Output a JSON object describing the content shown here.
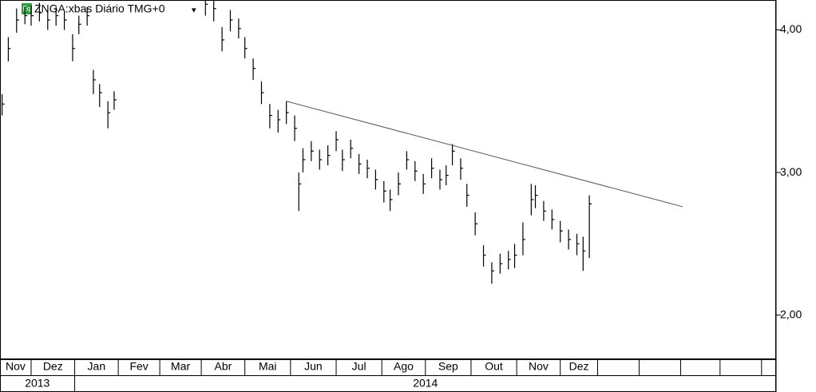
{
  "chart_data": {
    "type": "ohlc",
    "title": "ZNGA:xbas Diário TMG+0",
    "icon": "Eq",
    "menu": "▾",
    "x": [
      1,
      4,
      8,
      12,
      15,
      19,
      23,
      27,
      31,
      35,
      38,
      42,
      45,
      48,
      52,
      55,
      99,
      103,
      107,
      111,
      115,
      118,
      122,
      126,
      130,
      134,
      138,
      142,
      144,
      146,
      150,
      154,
      158,
      162,
      165,
      169,
      173,
      177,
      181,
      185,
      188,
      192,
      196,
      200,
      204,
      208,
      212,
      215,
      218,
      222,
      225,
      229,
      233,
      237,
      241,
      245,
      248,
      252,
      256,
      258,
      262,
      266,
      270,
      274,
      278,
      281,
      284
    ],
    "high": [
      3.55,
      3.95,
      4.15,
      4.16,
      4.17,
      4.19,
      4.14,
      4.16,
      4.13,
      3.97,
      4.1,
      4.16,
      3.72,
      3.62,
      3.5,
      3.57,
      4.21,
      4.21,
      4.02,
      4.14,
      4.08,
      3.95,
      3.8,
      3.64,
      3.48,
      3.44,
      3.5,
      3.4,
      3.0,
      3.17,
      3.22,
      3.16,
      3.19,
      3.29,
      3.16,
      3.23,
      3.13,
      3.09,
      3.02,
      2.94,
      2.88,
      3.0,
      3.15,
      3.08,
      2.99,
      3.1,
      3.02,
      3.05,
      3.2,
      3.1,
      2.92,
      2.72,
      2.49,
      2.37,
      2.43,
      2.45,
      2.5,
      2.65,
      2.92,
      2.91,
      2.8,
      2.74,
      2.66,
      2.6,
      2.57,
      2.55,
      2.84
    ],
    "low": [
      3.4,
      3.78,
      3.98,
      4.04,
      4.03,
      4.06,
      4.0,
      4.03,
      4.0,
      3.78,
      3.97,
      4.03,
      3.55,
      3.46,
      3.31,
      3.44,
      4.1,
      4.06,
      3.85,
      3.99,
      3.94,
      3.8,
      3.65,
      3.48,
      3.31,
      3.28,
      3.34,
      3.22,
      2.73,
      3.0,
      3.08,
      3.02,
      3.05,
      3.15,
      3.01,
      3.1,
      2.99,
      2.96,
      2.88,
      2.79,
      2.73,
      2.84,
      3.02,
      2.94,
      2.85,
      2.96,
      2.88,
      2.91,
      3.05,
      2.95,
      2.76,
      2.56,
      2.34,
      2.22,
      2.29,
      2.32,
      2.33,
      2.42,
      2.7,
      2.75,
      2.66,
      2.6,
      2.51,
      2.46,
      2.42,
      2.31,
      2.4
    ],
    "close": [
      3.48,
      3.87,
      4.07,
      4.1,
      4.1,
      4.12,
      4.07,
      4.1,
      4.07,
      3.87,
      4.04,
      4.1,
      3.65,
      3.56,
      3.42,
      3.51,
      4.18,
      4.15,
      3.93,
      4.07,
      4.01,
      3.87,
      3.73,
      3.56,
      3.4,
      3.37,
      3.42,
      3.31,
      2.92,
      3.09,
      3.15,
      3.09,
      3.12,
      3.23,
      3.09,
      3.17,
      3.06,
      3.03,
      2.95,
      2.87,
      2.81,
      2.92,
      3.09,
      3.01,
      2.92,
      3.03,
      2.95,
      2.98,
      3.15,
      3.03,
      2.84,
      2.64,
      2.42,
      2.31,
      2.36,
      2.39,
      2.42,
      2.53,
      2.81,
      2.84,
      2.73,
      2.67,
      2.59,
      2.53,
      2.5,
      2.45,
      2.78
    ],
    "color": "#000000",
    "trendline": {
      "x": [
        138,
        329
      ],
      "y": [
        3.5,
        2.76
      ],
      "color": "#555555"
    },
    "xlim": [
      0,
      374
    ],
    "ylim": [
      1.69,
      4.21
    ],
    "yticks": [
      {
        "value": 2,
        "label": "2,00"
      },
      {
        "value": 3,
        "label": "3,00"
      },
      {
        "value": 4,
        "label": "4,00"
      }
    ],
    "month_labels": [
      "Nov",
      "Dez",
      "Jan",
      "Fev",
      "Mar",
      "Abr",
      "Mai",
      "Jun",
      "Jul",
      "Ago",
      "Sep",
      "Out",
      "Nov",
      "Dez",
      null,
      null,
      null,
      null,
      null
    ],
    "month_edges": [
      0,
      15,
      36,
      57,
      77,
      97,
      118,
      140,
      162,
      184,
      205,
      227,
      249,
      270,
      288,
      308,
      328,
      347,
      367,
      374
    ],
    "year_labels": [
      "2013",
      "2014"
    ],
    "year_edges": [
      0,
      36,
      374
    ]
  }
}
